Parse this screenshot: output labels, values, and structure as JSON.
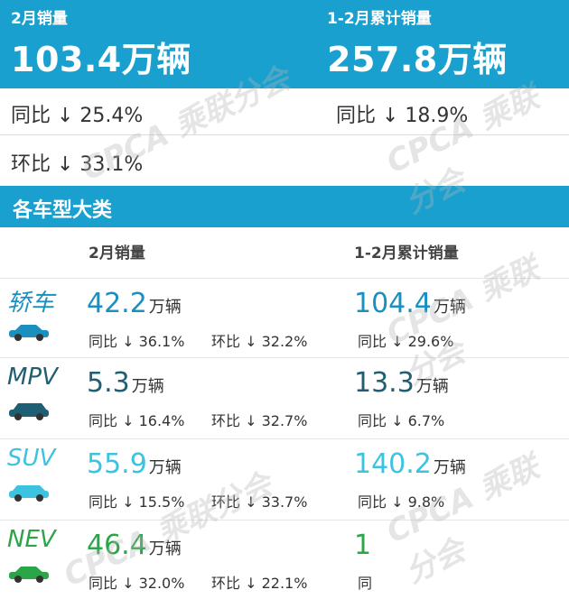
{
  "header": {
    "left_label": "2月销量",
    "left_value": "103.4万辆",
    "right_label": "1-2月累计销量",
    "right_value": "257.8万辆"
  },
  "summary": {
    "yoy_month": "同比 ↓ 25.4%",
    "yoy_cumulative": "同比 ↓ 18.9%",
    "mom_month": "环比 ↓ 33.1%"
  },
  "section_title": "各车型大类",
  "columns": {
    "month": "2月销量",
    "cumulative": "1-2月累计销量"
  },
  "unit": "万辆",
  "watermark": "CPCA 乘联分会",
  "categories": [
    {
      "name": "轿车",
      "color": "#1a8fc0",
      "icon": "sedan-icon",
      "month_value": "42.2",
      "month_yoy": "同比 ↓ 36.1%",
      "month_mom": "环比 ↓ 32.2%",
      "cum_value": "104.4",
      "cum_yoy": "同比 ↓ 29.6%"
    },
    {
      "name": "MPV",
      "color": "#1e5f73",
      "icon": "mpv-icon",
      "month_value": "5.3",
      "month_yoy": "同比 ↓ 16.4%",
      "month_mom": "环比 ↓ 32.7%",
      "cum_value": "13.3",
      "cum_yoy": "同比 ↓ 6.7%"
    },
    {
      "name": "SUV",
      "color": "#3cc3e0",
      "icon": "suv-icon",
      "month_value": "55.9",
      "month_yoy": "同比 ↓ 15.5%",
      "month_mom": "环比 ↓ 33.7%",
      "cum_value": "140.2",
      "cum_yoy": "同比 ↓ 9.8%"
    },
    {
      "name": "NEV",
      "color": "#2aa548",
      "icon": "nev-icon",
      "month_value": "46.4",
      "month_yoy": "同比 ↓ 32.0%",
      "month_mom": "环比 ↓ 22.1%",
      "cum_value": "1",
      "cum_yoy": "同"
    }
  ]
}
